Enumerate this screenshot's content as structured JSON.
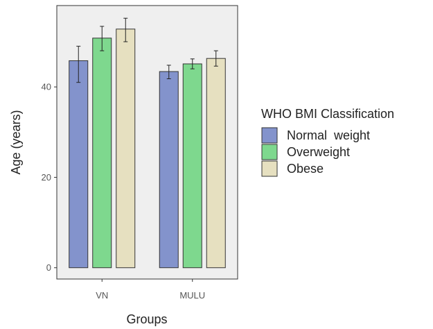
{
  "chart_data": {
    "type": "bar",
    "xlabel": "Groups",
    "ylabel": "Age (years)",
    "categories": [
      "VN",
      "MULU"
    ],
    "ylim": [
      -2.5,
      58
    ],
    "yticks": [
      0,
      20,
      40
    ],
    "yticks_labels": [
      "0",
      "20",
      "40"
    ],
    "grid": false,
    "legend": {
      "title": "WHO BMI Classification",
      "placement": "right"
    },
    "series": [
      {
        "name": "Normal  weight",
        "color": "#8393cc",
        "values": [
          45.8,
          43.4
        ],
        "err_low": [
          41.0,
          41.8
        ],
        "err_high": [
          49.0,
          44.8
        ]
      },
      {
        "name": "Overweight",
        "color": "#7ed88e",
        "values": [
          50.8,
          45.1
        ],
        "err_low": [
          48.0,
          44.0
        ],
        "err_high": [
          53.4,
          46.2
        ]
      },
      {
        "name": "Obese",
        "color": "#e6e0c0",
        "values": [
          52.8,
          46.3
        ],
        "err_low": [
          50.0,
          44.6
        ],
        "err_high": [
          55.2,
          48.0
        ]
      }
    ]
  }
}
